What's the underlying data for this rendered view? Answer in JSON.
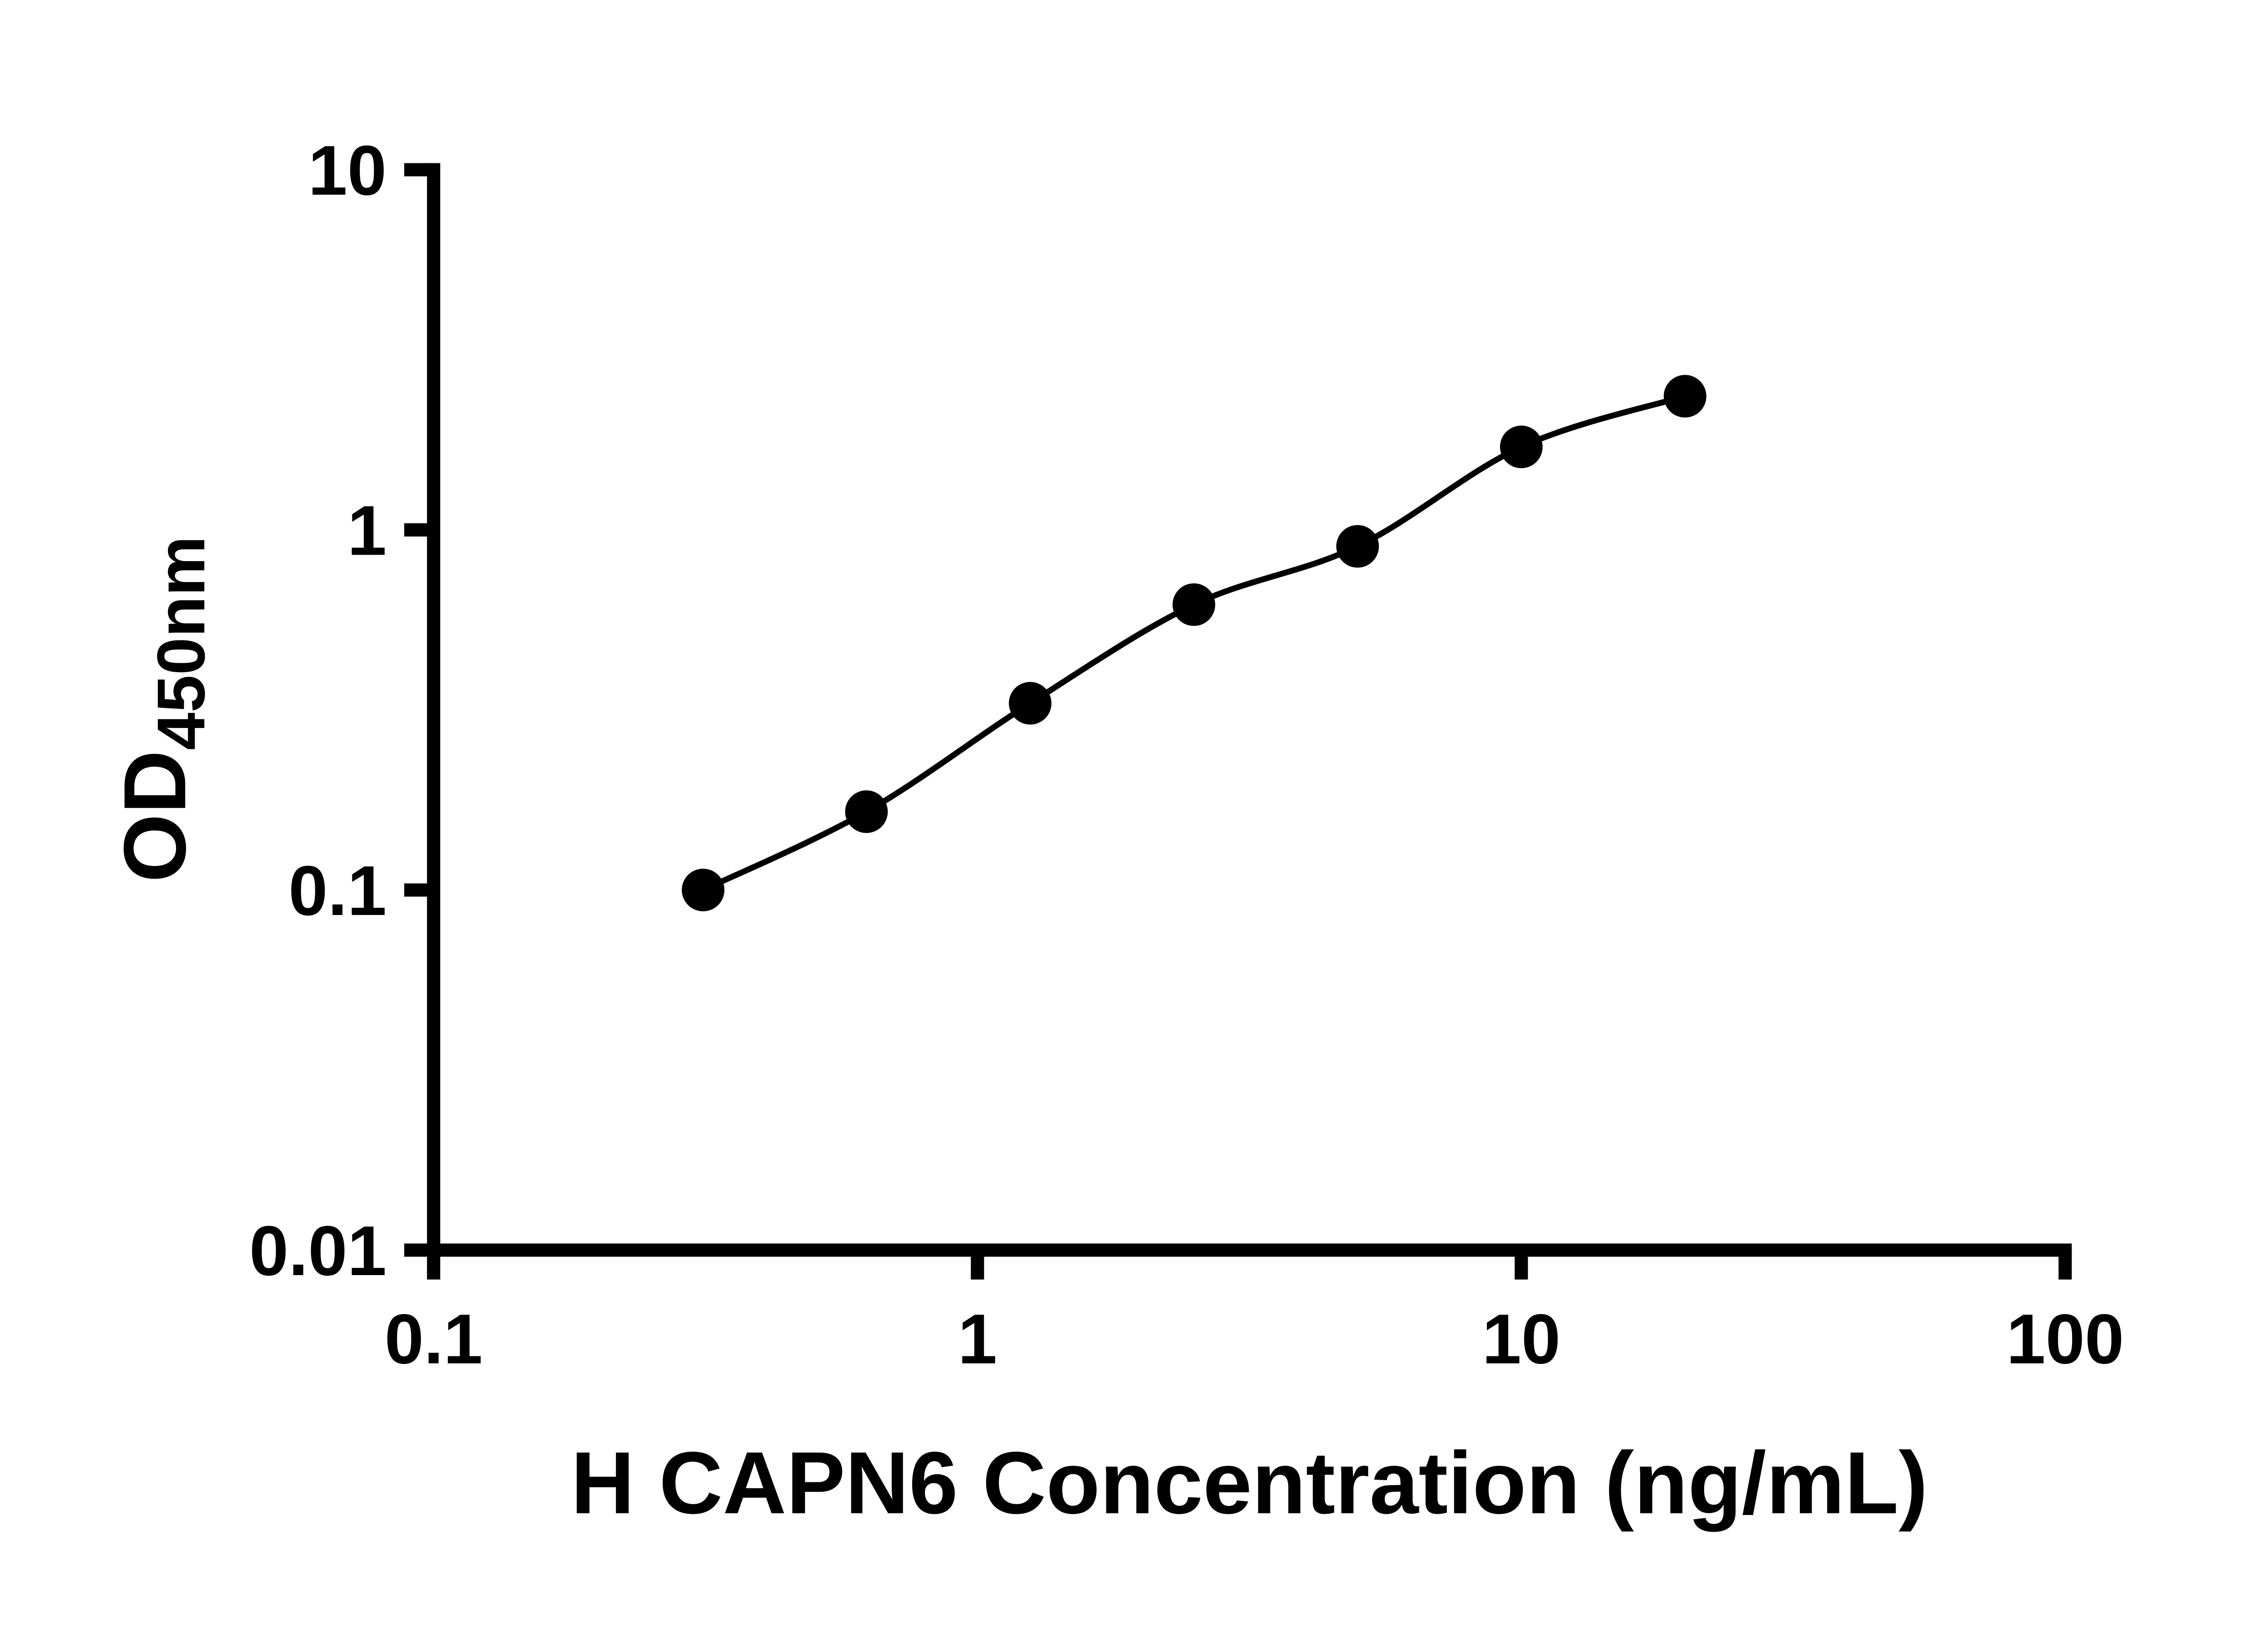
{
  "chart_data": {
    "type": "scatter",
    "subtype": "log-log standard curve with smooth fit line",
    "title": "",
    "xlabel": "H CAPN6 Concentration (ng/mL)",
    "ylabel_main": "OD",
    "ylabel_sub": "450nm",
    "x_scale": "log",
    "y_scale": "log",
    "xlim": [
      0.1,
      100
    ],
    "ylim": [
      0.01,
      10
    ],
    "x_ticks": [
      0.1,
      1,
      10,
      100
    ],
    "x_tick_labels": [
      "0.1",
      "1",
      "10",
      "100"
    ],
    "y_ticks": [
      0.01,
      0.1,
      1,
      10
    ],
    "y_tick_labels": [
      "0.01",
      "0.1",
      "1",
      "10"
    ],
    "grid": false,
    "legend": "none",
    "points": [
      {
        "x": 0.313,
        "y": 0.1
      },
      {
        "x": 0.625,
        "y": 0.165
      },
      {
        "x": 1.25,
        "y": 0.33
      },
      {
        "x": 2.5,
        "y": 0.62
      },
      {
        "x": 5,
        "y": 0.9
      },
      {
        "x": 10,
        "y": 1.7
      },
      {
        "x": 20,
        "y": 2.35
      }
    ],
    "colors": {
      "line": "#000000",
      "marker": "#000000",
      "axis": "#000000",
      "background": "#ffffff"
    }
  }
}
